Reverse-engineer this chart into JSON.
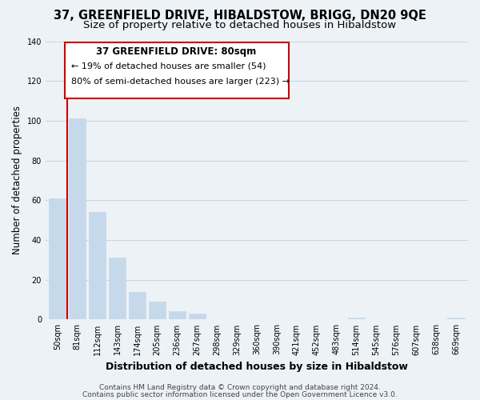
{
  "title1": "37, GREENFIELD DRIVE, HIBALDSTOW, BRIGG, DN20 9QE",
  "title2": "Size of property relative to detached houses in Hibaldstow",
  "bar_labels": [
    "50sqm",
    "81sqm",
    "112sqm",
    "143sqm",
    "174sqm",
    "205sqm",
    "236sqm",
    "267sqm",
    "298sqm",
    "329sqm",
    "360sqm",
    "390sqm",
    "421sqm",
    "452sqm",
    "483sqm",
    "514sqm",
    "545sqm",
    "576sqm",
    "607sqm",
    "638sqm",
    "669sqm"
  ],
  "bar_values": [
    61,
    101,
    54,
    31,
    14,
    9,
    4,
    3,
    0,
    0,
    0,
    0,
    0,
    0,
    0,
    1,
    0,
    0,
    0,
    0,
    1
  ],
  "bar_color": "#c5d9ea",
  "marker_line_color": "#cc0000",
  "ylabel": "Number of detached properties",
  "xlabel": "Distribution of detached houses by size in Hibaldstow",
  "ylim": [
    0,
    140
  ],
  "yticks": [
    0,
    20,
    40,
    60,
    80,
    100,
    120,
    140
  ],
  "annotation_title": "37 GREENFIELD DRIVE: 80sqm",
  "annotation_line1": "← 19% of detached houses are smaller (54)",
  "annotation_line2": "80% of semi-detached houses are larger (223) →",
  "annotation_box_color": "#ffffff",
  "annotation_box_edge": "#cc0000",
  "footer1": "Contains HM Land Registry data © Crown copyright and database right 2024.",
  "footer2": "Contains public sector information licensed under the Open Government Licence v3.0.",
  "background_color": "#edf2f7",
  "grid_color": "#c8d8e8",
  "title_fontsize": 10.5,
  "subtitle_fontsize": 9.5,
  "xlabel_fontsize": 9,
  "ylabel_fontsize": 8.5,
  "tick_fontsize": 7,
  "footer_fontsize": 6.5,
  "ann_title_fontsize": 8.5,
  "ann_text_fontsize": 8
}
